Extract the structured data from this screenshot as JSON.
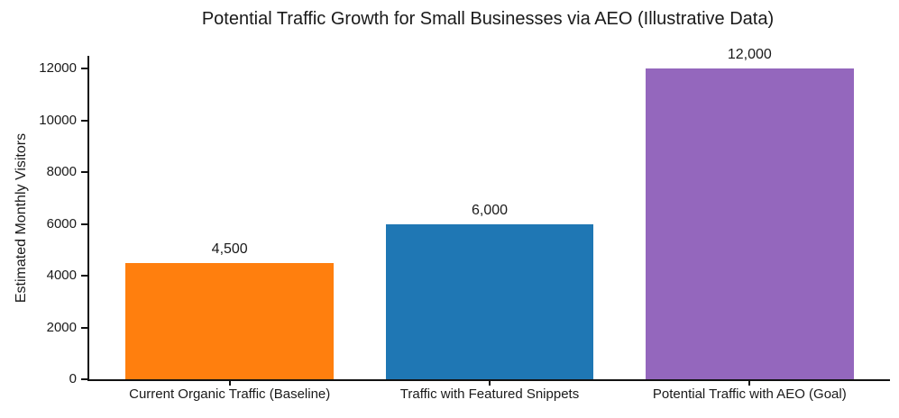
{
  "chart_data": {
    "type": "bar",
    "title": "Potential Traffic Growth for Small Businesses via AEO (Illustrative Data)",
    "categories": [
      "Current Organic Traffic (Baseline)",
      "Traffic with Featured Snippets",
      "Potential Traffic with AEO (Goal)"
    ],
    "values": [
      4500,
      6000,
      12000
    ],
    "value_labels": [
      "4,500",
      "6,000",
      "12,000"
    ],
    "bar_colors": [
      "#ff7f0e",
      "#1f77b4",
      "#9467bd"
    ],
    "xlabel": "",
    "ylabel": "Estimated Monthly Visitors",
    "ylim": [
      0,
      12500
    ],
    "ytick_values": [
      0,
      2000,
      4000,
      6000,
      8000,
      10000,
      12000
    ],
    "ytick_labels": [
      "0",
      "2000",
      "4000",
      "6000",
      "8000",
      "10000",
      "12000"
    ],
    "grid": false,
    "legend_position": "none",
    "background_color": "#ffffff",
    "axis_color": "#111111",
    "text_color": "#1a1a1a"
  }
}
